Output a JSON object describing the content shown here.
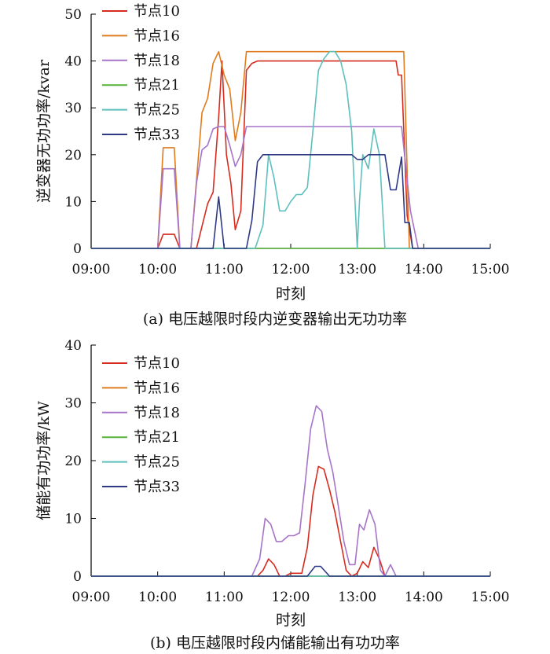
{
  "chart_data": [
    {
      "type": "line",
      "caption": "(a)  电压越限时段内逆变器输出无功功率",
      "xlabel": "时刻",
      "ylabel": "逆变器无功功率/kvar",
      "x_ticks": [
        "09:00",
        "10:00",
        "11:00",
        "12:00",
        "13:00",
        "14:00",
        "15:00"
      ],
      "y_ticks": [
        "0",
        "10",
        "20",
        "30",
        "40",
        "50"
      ],
      "ylim": [
        0,
        50
      ],
      "xlim": [
        "09:00",
        "15:00"
      ],
      "legend_position": "top-left",
      "grid": false,
      "series": [
        {
          "name": "节点10",
          "color": "#d62b1f",
          "points": [
            [
              "09:00",
              0
            ],
            [
              "10:00",
              0
            ],
            [
              "10:05",
              3
            ],
            [
              "10:15",
              3
            ],
            [
              "10:20",
              0
            ],
            [
              "10:35",
              0
            ],
            [
              "10:45",
              9.5
            ],
            [
              "10:50",
              12
            ],
            [
              "10:55",
              28
            ],
            [
              "10:58",
              40
            ],
            [
              "11:02",
              20
            ],
            [
              "11:06",
              14
            ],
            [
              "11:10",
              4
            ],
            [
              "11:15",
              8
            ],
            [
              "11:20",
              38
            ],
            [
              "11:25",
              39.5
            ],
            [
              "11:30",
              40
            ],
            [
              "13:35",
              40
            ],
            [
              "13:37",
              37
            ],
            [
              "13:40",
              37
            ],
            [
              "13:45",
              7
            ],
            [
              "13:50",
              0
            ],
            [
              "15:00",
              0
            ]
          ]
        },
        {
          "name": "节点16",
          "color": "#e07c1e",
          "points": [
            [
              "09:00",
              0
            ],
            [
              "10:00",
              0
            ],
            [
              "10:05",
              21.5
            ],
            [
              "10:15",
              21.5
            ],
            [
              "10:20",
              0
            ],
            [
              "10:30",
              0
            ],
            [
              "10:40",
              29
            ],
            [
              "10:45",
              32
            ],
            [
              "10:50",
              39.5
            ],
            [
              "10:55",
              42
            ],
            [
              "11:00",
              37
            ],
            [
              "11:05",
              34
            ],
            [
              "11:10",
              23
            ],
            [
              "11:15",
              29
            ],
            [
              "11:20",
              42
            ],
            [
              "13:42",
              42
            ],
            [
              "13:47",
              0
            ],
            [
              "15:00",
              0
            ]
          ]
        },
        {
          "name": "节点18",
          "color": "#a674c8",
          "points": [
            [
              "09:00",
              0
            ],
            [
              "10:00",
              0
            ],
            [
              "10:05",
              17
            ],
            [
              "10:15",
              17
            ],
            [
              "10:20",
              0
            ],
            [
              "10:30",
              0
            ],
            [
              "10:35",
              14
            ],
            [
              "10:40",
              21
            ],
            [
              "10:45",
              22
            ],
            [
              "10:50",
              25.5
            ],
            [
              "10:55",
              26
            ],
            [
              "11:00",
              26
            ],
            [
              "11:05",
              22
            ],
            [
              "11:10",
              17.5
            ],
            [
              "11:15",
              20
            ],
            [
              "11:20",
              26
            ],
            [
              "13:40",
              26
            ],
            [
              "13:48",
              8
            ],
            [
              "13:55",
              0
            ],
            [
              "15:00",
              0
            ]
          ]
        },
        {
          "name": "节点21",
          "color": "#57b33a",
          "points": [
            [
              "09:00",
              0
            ],
            [
              "15:00",
              0
            ]
          ]
        },
        {
          "name": "节点25",
          "color": "#5ec0be",
          "points": [
            [
              "09:00",
              0
            ],
            [
              "11:28",
              0
            ],
            [
              "11:35",
              5
            ],
            [
              "11:40",
              20
            ],
            [
              "11:45",
              15
            ],
            [
              "11:50",
              8
            ],
            [
              "11:55",
              8
            ],
            [
              "12:00",
              10
            ],
            [
              "12:05",
              11.5
            ],
            [
              "12:10",
              11.5
            ],
            [
              "12:15",
              13
            ],
            [
              "12:20",
              25
            ],
            [
              "12:25",
              38
            ],
            [
              "12:30",
              40.5
            ],
            [
              "12:35",
              42
            ],
            [
              "12:40",
              42
            ],
            [
              "12:45",
              40
            ],
            [
              "12:50",
              35
            ],
            [
              "12:55",
              25
            ],
            [
              "12:58",
              10
            ],
            [
              "13:00",
              0
            ],
            [
              "13:02",
              10
            ],
            [
              "13:05",
              20
            ],
            [
              "13:10",
              17
            ],
            [
              "13:15",
              25.5
            ],
            [
              "13:20",
              20
            ],
            [
              "13:25",
              0
            ],
            [
              "15:00",
              0
            ]
          ]
        },
        {
          "name": "节点33",
          "color": "#2e3a85",
          "points": [
            [
              "09:00",
              0
            ],
            [
              "10:50",
              0
            ],
            [
              "10:55",
              11
            ],
            [
              "11:00",
              0
            ],
            [
              "11:20",
              0
            ],
            [
              "11:25",
              6
            ],
            [
              "11:30",
              18.5
            ],
            [
              "11:35",
              20
            ],
            [
              "12:55",
              20
            ],
            [
              "13:00",
              19
            ],
            [
              "13:05",
              19
            ],
            [
              "13:10",
              20
            ],
            [
              "13:25",
              20
            ],
            [
              "13:30",
              12.5
            ],
            [
              "13:35",
              12.5
            ],
            [
              "13:40",
              19.5
            ],
            [
              "13:43",
              5.5
            ],
            [
              "13:47",
              5.5
            ],
            [
              "13:50",
              0
            ],
            [
              "15:00",
              0
            ]
          ]
        }
      ]
    },
    {
      "type": "line",
      "caption": "(b)  电压越限时段内储能输出有功功率",
      "xlabel": "时刻",
      "ylabel": "储能有功功率/kW",
      "x_ticks": [
        "09:00",
        "10:00",
        "11:00",
        "12:00",
        "13:00",
        "14:00",
        "15:00"
      ],
      "y_ticks": [
        "0",
        "10",
        "20",
        "30",
        "40"
      ],
      "ylim": [
        0,
        40
      ],
      "xlim": [
        "09:00",
        "15:00"
      ],
      "legend_position": "top-left",
      "grid": false,
      "series": [
        {
          "name": "节点10",
          "color": "#d62b1f",
          "points": [
            [
              "09:00",
              0
            ],
            [
              "11:30",
              0
            ],
            [
              "11:35",
              1
            ],
            [
              "11:40",
              3
            ],
            [
              "11:45",
              2
            ],
            [
              "11:50",
              0
            ],
            [
              "11:55",
              0
            ],
            [
              "12:00",
              0.5
            ],
            [
              "12:10",
              0.5
            ],
            [
              "12:15",
              5
            ],
            [
              "12:20",
              14
            ],
            [
              "12:25",
              19
            ],
            [
              "12:30",
              18.5
            ],
            [
              "12:35",
              15
            ],
            [
              "12:40",
              11
            ],
            [
              "12:45",
              6
            ],
            [
              "12:50",
              1
            ],
            [
              "12:55",
              0
            ],
            [
              "13:00",
              0.5
            ],
            [
              "13:05",
              2.5
            ],
            [
              "13:10",
              1.5
            ],
            [
              "13:15",
              5
            ],
            [
              "13:20",
              3
            ],
            [
              "13:25",
              0
            ],
            [
              "15:00",
              0
            ]
          ]
        },
        {
          "name": "节点16",
          "color": "#e07c1e",
          "points": [
            [
              "09:00",
              0
            ],
            [
              "15:00",
              0
            ]
          ]
        },
        {
          "name": "节点18",
          "color": "#a674c8",
          "points": [
            [
              "09:00",
              0
            ],
            [
              "11:25",
              0
            ],
            [
              "11:32",
              3
            ],
            [
              "11:37",
              10
            ],
            [
              "11:42",
              9
            ],
            [
              "11:47",
              6
            ],
            [
              "11:52",
              6
            ],
            [
              "11:58",
              7
            ],
            [
              "12:03",
              7
            ],
            [
              "12:08",
              7.5
            ],
            [
              "12:13",
              16
            ],
            [
              "12:18",
              25.5
            ],
            [
              "12:23",
              29.5
            ],
            [
              "12:28",
              28.5
            ],
            [
              "12:33",
              22
            ],
            [
              "12:38",
              18
            ],
            [
              "12:43",
              12
            ],
            [
              "12:48",
              6
            ],
            [
              "12:53",
              2
            ],
            [
              "12:58",
              2
            ],
            [
              "13:02",
              9
            ],
            [
              "13:06",
              8
            ],
            [
              "13:11",
              11.5
            ],
            [
              "13:16",
              9
            ],
            [
              "13:21",
              1
            ],
            [
              "13:25",
              0
            ],
            [
              "13:30",
              2
            ],
            [
              "13:35",
              0
            ],
            [
              "15:00",
              0
            ]
          ]
        },
        {
          "name": "节点21",
          "color": "#57b33a",
          "points": [
            [
              "09:00",
              0
            ],
            [
              "15:00",
              0
            ]
          ]
        },
        {
          "name": "节点25",
          "color": "#5ec0be",
          "points": [
            [
              "09:00",
              0
            ],
            [
              "15:00",
              0
            ]
          ]
        },
        {
          "name": "节点33",
          "color": "#2e3a85",
          "points": [
            [
              "09:00",
              0
            ],
            [
              "12:15",
              0
            ],
            [
              "12:22",
              1.7
            ],
            [
              "12:27",
              1.7
            ],
            [
              "12:35",
              0
            ],
            [
              "15:00",
              0
            ]
          ]
        }
      ]
    }
  ]
}
